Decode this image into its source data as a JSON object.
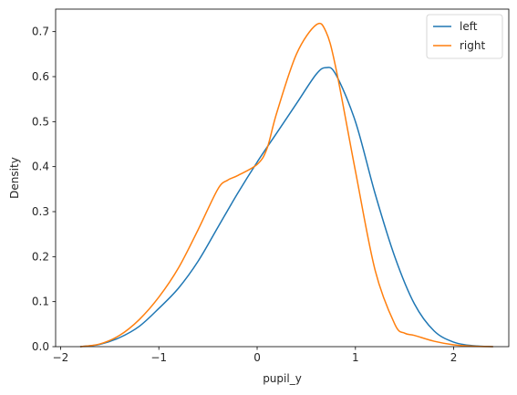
{
  "chart_data": {
    "type": "line",
    "title": "",
    "xlabel": "pupil_y",
    "ylabel": "Density",
    "xlim": [
      -2.05,
      2.56
    ],
    "ylim": [
      0,
      0.75
    ],
    "xticks": [
      -2,
      -1,
      0,
      1,
      2
    ],
    "xtick_labels": [
      "−2",
      "−1",
      "0",
      "1",
      "2"
    ],
    "yticks": [
      0.0,
      0.1,
      0.2,
      0.3,
      0.4,
      0.5,
      0.6,
      0.7
    ],
    "ytick_labels": [
      "0.0",
      "0.1",
      "0.2",
      "0.3",
      "0.4",
      "0.5",
      "0.6",
      "0.7"
    ],
    "grid": false,
    "legend": "top-right",
    "series": [
      {
        "name": "left",
        "color": "#1f77b4",
        "x": [
          -1.8,
          -1.6,
          -1.4,
          -1.2,
          -1.0,
          -0.8,
          -0.6,
          -0.4,
          -0.2,
          0.0,
          0.2,
          0.4,
          0.6,
          0.7,
          0.8,
          1.0,
          1.2,
          1.4,
          1.6,
          1.8,
          2.0,
          2.2,
          2.4
        ],
        "y": [
          0.0,
          0.005,
          0.02,
          0.045,
          0.085,
          0.13,
          0.19,
          0.265,
          0.34,
          0.41,
          0.475,
          0.54,
          0.605,
          0.62,
          0.605,
          0.5,
          0.34,
          0.2,
          0.095,
          0.035,
          0.01,
          0.002,
          0.0
        ]
      },
      {
        "name": "right",
        "color": "#ff7f0e",
        "x": [
          -1.8,
          -1.6,
          -1.4,
          -1.2,
          -1.0,
          -0.8,
          -0.6,
          -0.4,
          -0.3,
          -0.2,
          0.0,
          0.1,
          0.2,
          0.4,
          0.6,
          0.7,
          0.8,
          1.0,
          1.2,
          1.4,
          1.5,
          1.6,
          1.8,
          2.0,
          2.2,
          2.4
        ],
        "y": [
          0.0,
          0.006,
          0.025,
          0.06,
          0.11,
          0.175,
          0.26,
          0.35,
          0.37,
          0.38,
          0.405,
          0.44,
          0.52,
          0.65,
          0.715,
          0.7,
          0.62,
          0.39,
          0.17,
          0.05,
          0.03,
          0.025,
          0.012,
          0.004,
          0.001,
          0.0
        ]
      }
    ]
  }
}
